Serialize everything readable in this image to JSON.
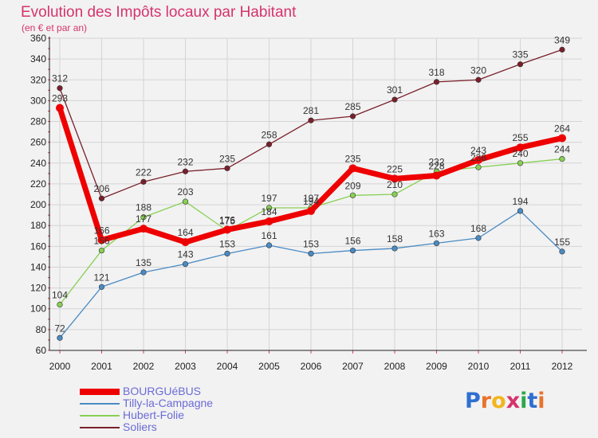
{
  "chart_data": {
    "type": "line",
    "title": "Evolution des Impôts locaux par Habitant",
    "subtitle": "(en € et par an)",
    "xlabel": "",
    "ylabel": "",
    "ylim": [
      60,
      360
    ],
    "yticks": [
      60,
      80,
      100,
      120,
      140,
      160,
      180,
      200,
      220,
      240,
      260,
      280,
      300,
      320,
      340,
      360
    ],
    "categories": [
      "2000",
      "2001",
      "2002",
      "2003",
      "2004",
      "2005",
      "2006",
      "2007",
      "2008",
      "2009",
      "2010",
      "2011",
      "2012"
    ],
    "grid": true,
    "legend_position": "bottom-left",
    "series": [
      {
        "name": "BOURGUéBUS",
        "color": "#ee0000",
        "values": [
          293,
          166,
          177,
          164,
          176,
          184,
          194,
          235,
          225,
          228,
          243,
          255,
          264
        ]
      },
      {
        "name": "Tilly-la-Campagne",
        "color": "#4a8bc4",
        "values": [
          72,
          121,
          135,
          143,
          153,
          161,
          153,
          156,
          158,
          163,
          168,
          194,
          155
        ]
      },
      {
        "name": "Hubert-Folie",
        "color": "#88d055",
        "values": [
          104,
          156,
          188,
          203,
          175,
          197,
          197,
          209,
          210,
          232,
          236,
          240,
          244
        ]
      },
      {
        "name": "Soliers",
        "color": "#7a1f2b",
        "values": [
          312,
          206,
          222,
          232,
          235,
          258,
          281,
          285,
          301,
          318,
          320,
          335,
          349
        ]
      }
    ]
  },
  "logo": {
    "letters": [
      "P",
      "r",
      "o",
      "x",
      "i",
      "t",
      "i"
    ],
    "colors": [
      "#2f6fd0",
      "#e8732a",
      "#f2b51d",
      "#d6336c",
      "#2ba84a",
      "#2f6fd0",
      "#e8732a"
    ]
  }
}
